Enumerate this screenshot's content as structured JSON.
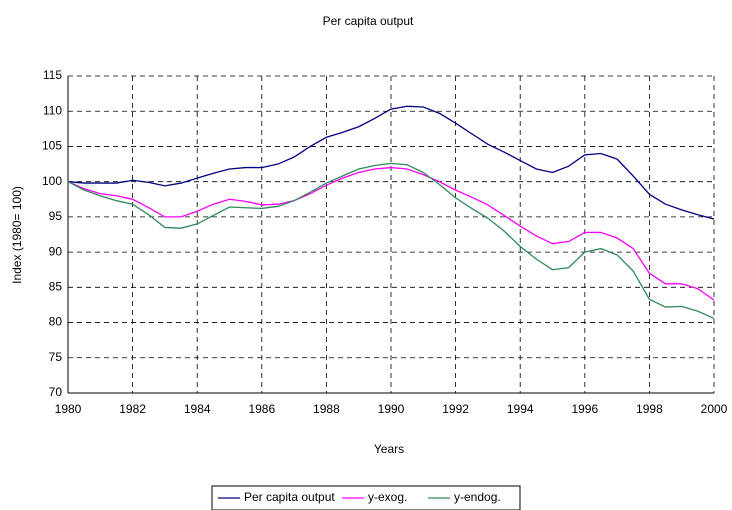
{
  "chart_data": {
    "type": "line",
    "title": "Per capita output",
    "xlabel": "Years",
    "ylabel": "Index (1980= 100)",
    "x": [
      1980,
      1980.5,
      1981,
      1981.5,
      1982,
      1982.5,
      1983,
      1983.5,
      1984,
      1984.5,
      1985,
      1985.5,
      1986,
      1986.5,
      1987,
      1987.5,
      1988,
      1988.5,
      1989,
      1989.5,
      1990,
      1990.5,
      1991,
      1991.5,
      1992,
      1992.5,
      1993,
      1993.5,
      1994,
      1994.5,
      1995,
      1995.5,
      1996,
      1996.5,
      1997,
      1997.5,
      1998,
      1998.5,
      1999,
      1999.5,
      2000
    ],
    "series": [
      {
        "name": "Per capita output",
        "color": "#000080",
        "values": [
          100,
          99.8,
          99.8,
          99.8,
          100.2,
          99.9,
          99.4,
          99.8,
          100.5,
          101.2,
          101.8,
          102,
          102,
          102.5,
          103.5,
          105,
          106.3,
          107,
          107.8,
          109,
          110.3,
          110.7,
          110.6,
          109.7,
          108.3,
          106.8,
          105.3,
          104.2,
          103,
          101.8,
          101.3,
          102.2,
          103.8,
          104,
          103.2,
          100.8,
          98.2,
          96.8,
          96,
          95.3,
          94.7
        ]
      },
      {
        "name": "y-exog.",
        "color": "#ff00ff",
        "values": [
          100,
          99,
          98.3,
          98,
          97.5,
          96.3,
          95,
          95,
          95.8,
          96.8,
          97.5,
          97.2,
          96.7,
          96.8,
          97.3,
          98.3,
          99.5,
          100.5,
          101.3,
          101.8,
          102,
          101.8,
          101,
          100,
          98.8,
          97.8,
          96.7,
          95.2,
          93.7,
          92.3,
          91.2,
          91.5,
          92.8,
          92.8,
          92,
          90.5,
          87,
          85.5,
          85.5,
          84.8,
          83.2
        ]
      },
      {
        "name": "y-endog.",
        "color": "#2e8b57",
        "values": [
          100,
          98.8,
          98,
          97.3,
          96.8,
          95.3,
          93.5,
          93.4,
          94,
          95.2,
          96.4,
          96.3,
          96.2,
          96.5,
          97.3,
          98.5,
          99.8,
          100.8,
          101.8,
          102.3,
          102.6,
          102.4,
          101.3,
          99.6,
          97.7,
          96.2,
          94.8,
          93,
          90.8,
          89,
          87.5,
          87.8,
          90,
          90.5,
          89.6,
          87.3,
          83.3,
          82.2,
          82.3,
          81.6,
          80.6
        ]
      }
    ],
    "xlim": [
      1980,
      2000
    ],
    "xticks": [
      1980,
      1982,
      1984,
      1986,
      1988,
      1990,
      1992,
      1994,
      1996,
      1998,
      2000
    ],
    "ylim": [
      70,
      115
    ],
    "yticks": [
      70,
      75,
      80,
      85,
      90,
      95,
      100,
      105,
      110,
      115
    ],
    "grid": true,
    "legend": "bottom"
  }
}
